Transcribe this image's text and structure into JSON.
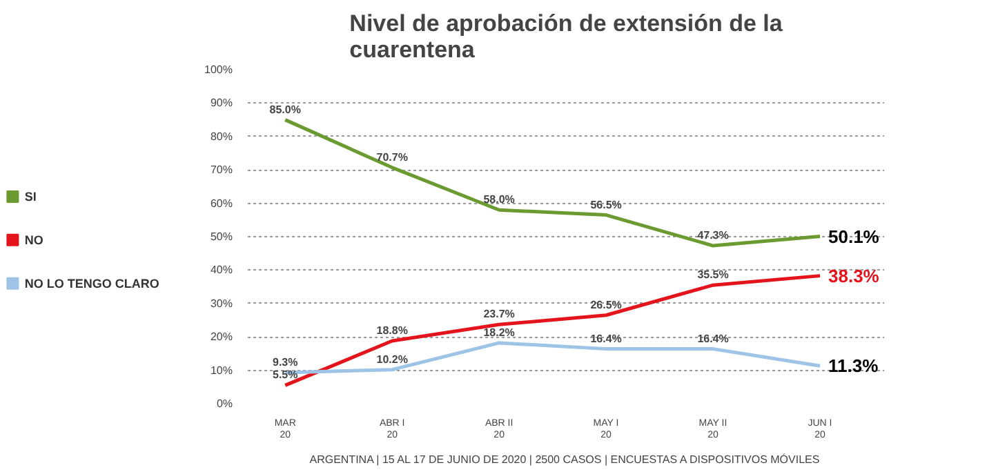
{
  "chart_data": {
    "type": "line",
    "title": "Nivel de aprobación de extensión de la cuarentena",
    "categories": [
      "MAR\n20",
      "ABR I\n20",
      "ABR II\n20",
      "MAY I\n20",
      "MAY II\n20",
      "JUN I\n20"
    ],
    "series": [
      {
        "name": "SI",
        "color": "#6b9a30",
        "values": [
          85.0,
          70.7,
          58.0,
          56.5,
          47.3,
          50.1
        ],
        "value_labels": [
          "85.0%",
          "70.7%",
          "58.0%",
          "56.5%",
          "47.3%",
          "50.1%"
        ]
      },
      {
        "name": "NO",
        "color": "#e3141b",
        "values": [
          5.5,
          18.8,
          23.7,
          26.5,
          35.5,
          38.3
        ],
        "value_labels": [
          "5.5%",
          "18.8%",
          "23.7%",
          "26.5%",
          "35.5%",
          "38.3%"
        ]
      },
      {
        "name": "NO LO TENGO CLARO",
        "color": "#9dc3e6",
        "values": [
          9.3,
          10.2,
          18.2,
          16.4,
          16.4,
          11.3
        ],
        "value_labels": [
          "9.3%",
          "10.2%",
          "18.2%",
          "16.4%",
          "16.4%",
          "11.3%"
        ]
      }
    ],
    "ylim": [
      0,
      100
    ],
    "yticks": [
      {
        "value": 0,
        "label": "0%"
      },
      {
        "value": 10,
        "label": "10%"
      },
      {
        "value": 20,
        "label": "20%"
      },
      {
        "value": 30,
        "label": "30%"
      },
      {
        "value": 40,
        "label": "40%"
      },
      {
        "value": 50,
        "label": "50%"
      },
      {
        "value": 60,
        "label": "60%"
      },
      {
        "value": 70,
        "label": "70%"
      },
      {
        "value": 80,
        "label": "80%"
      },
      {
        "value": 90,
        "label": "90%"
      },
      {
        "value": 100,
        "label": "100%"
      }
    ],
    "grid": "y",
    "legend": "left",
    "marker": "none",
    "line_style": "solid",
    "annotations": [
      "ARGENTINA | 15 AL 17 DE JUNIO DE 2020 | 2500 CASOS | ENCUESTAS A DISPOSITIVOS MÓVILES"
    ]
  }
}
